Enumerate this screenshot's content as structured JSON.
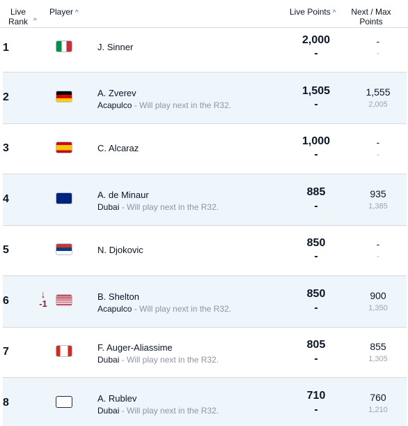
{
  "header": {
    "rank_line1": "Live",
    "rank_line2": "Rank",
    "rank_sort": "^",
    "player": "Player",
    "player_sort": "^",
    "live_points": "Live Points",
    "live_sort": "^",
    "next_line1": "Next / Max",
    "next_line2": "Points"
  },
  "rows": [
    {
      "rank": "1",
      "flag": "flag-italy-icon",
      "name": "J. Sinner",
      "tour": "",
      "note": "",
      "points": "2,000",
      "points_dash": "-",
      "next": "-",
      "max": "-",
      "move_arrow": "",
      "move": ""
    },
    {
      "rank": "2",
      "flag": "flag-germany-icon",
      "name": "A. Zverev",
      "tour": "Acapulco",
      "note": " - Will play next in the R32.",
      "points": "1,505",
      "points_dash": "-",
      "next": "1,555",
      "max": "2,005",
      "move_arrow": "",
      "move": ""
    },
    {
      "rank": "3",
      "flag": "flag-spain-icon",
      "name": "C. Alcaraz",
      "tour": "",
      "note": "",
      "points": "1,000",
      "points_dash": "-",
      "next": "-",
      "max": "-",
      "move_arrow": "",
      "move": ""
    },
    {
      "rank": "4",
      "flag": "flag-australia-icon",
      "name": "A. de Minaur",
      "tour": "Dubai",
      "note": " - Will play next in the R32.",
      "points": "885",
      "points_dash": "-",
      "next": "935",
      "max": "1,385",
      "move_arrow": "",
      "move": ""
    },
    {
      "rank": "5",
      "flag": "flag-serbia-icon",
      "name": "N. Djokovic",
      "tour": "",
      "note": "",
      "points": "850",
      "points_dash": "-",
      "next": "-",
      "max": "-",
      "move_arrow": "",
      "move": ""
    },
    {
      "rank": "6",
      "flag": "flag-usa-icon",
      "name": "B. Shelton",
      "tour": "Acapulco",
      "note": " - Will play next in the R32.",
      "points": "850",
      "points_dash": "-",
      "next": "900",
      "max": "1,350",
      "move_arrow": "↓",
      "move": "-1"
    },
    {
      "rank": "7",
      "flag": "flag-canada-icon",
      "name": "F. Auger-Aliassime",
      "tour": "Dubai",
      "note": " - Will play next in the R32.",
      "points": "805",
      "points_dash": "-",
      "next": "855",
      "max": "1,305",
      "move_arrow": "",
      "move": ""
    },
    {
      "rank": "8",
      "flag": "flag-none-icon",
      "name": "A. Rublev",
      "tour": "Dubai",
      "note": " - Will play next in the R32.",
      "points": "710",
      "points_dash": "-",
      "next": "760",
      "max": "1,210",
      "move_arrow": "",
      "move": ""
    }
  ]
}
